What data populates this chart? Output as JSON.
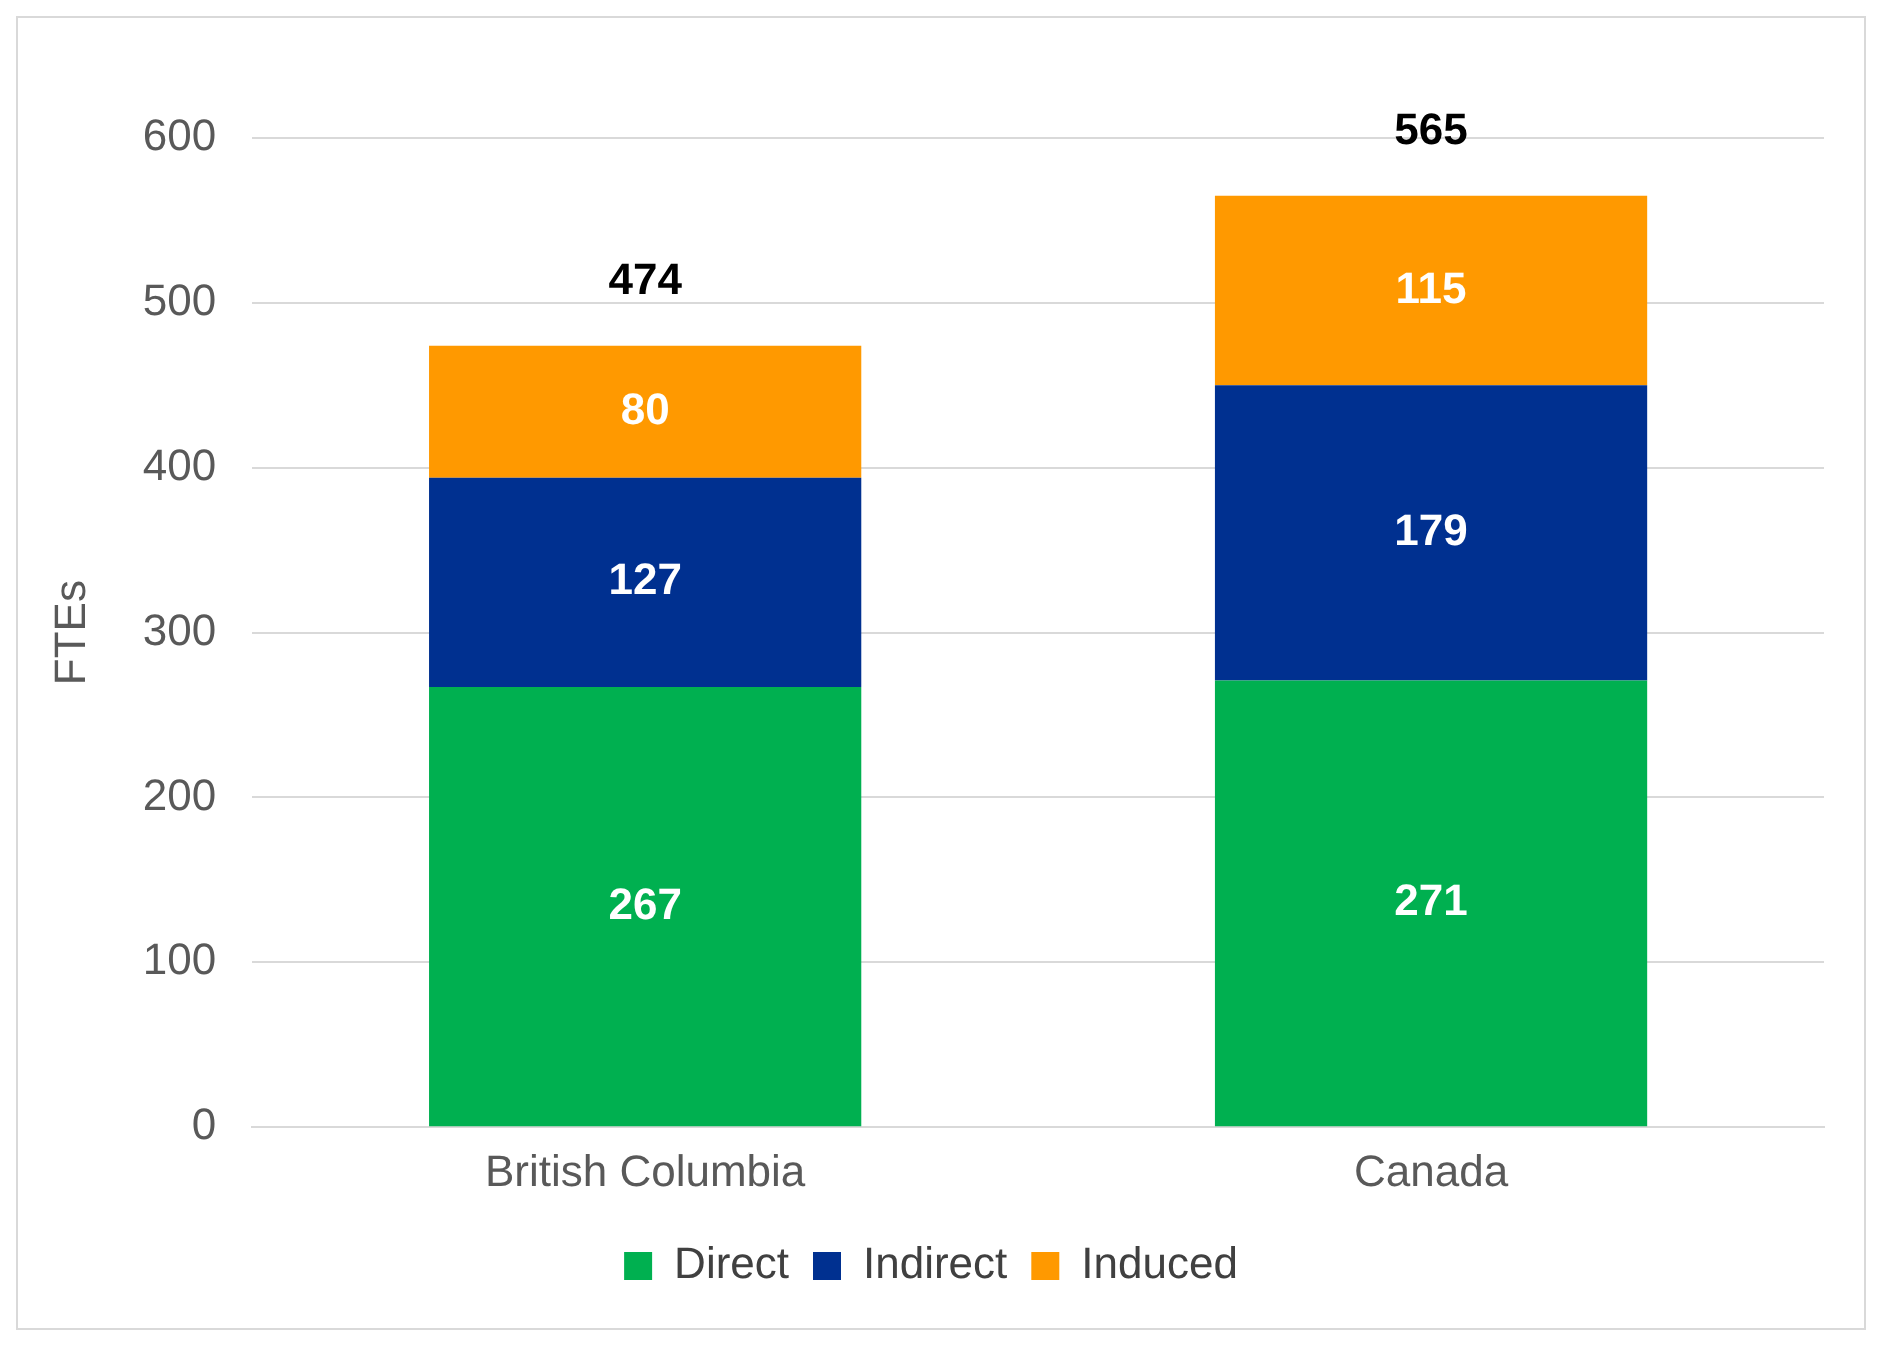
{
  "chart_data": {
    "type": "bar",
    "stacked": true,
    "ylabel": "FTEs",
    "categories": [
      "British Columbia",
      "Canada"
    ],
    "series": [
      {
        "name": "Direct",
        "color": "#00b050",
        "values": [
          267,
          271
        ]
      },
      {
        "name": "Indirect",
        "color": "#003090",
        "values": [
          127,
          179
        ]
      },
      {
        "name": "Induced",
        "color": "#ff9900",
        "values": [
          80,
          115
        ]
      }
    ],
    "ylim": [
      0,
      600
    ],
    "yticks": [
      0,
      100,
      200,
      300,
      400,
      500,
      600
    ],
    "grid": "y",
    "legend": "bottom",
    "data_labels": true,
    "totals": [
      "474",
      "565"
    ]
  }
}
